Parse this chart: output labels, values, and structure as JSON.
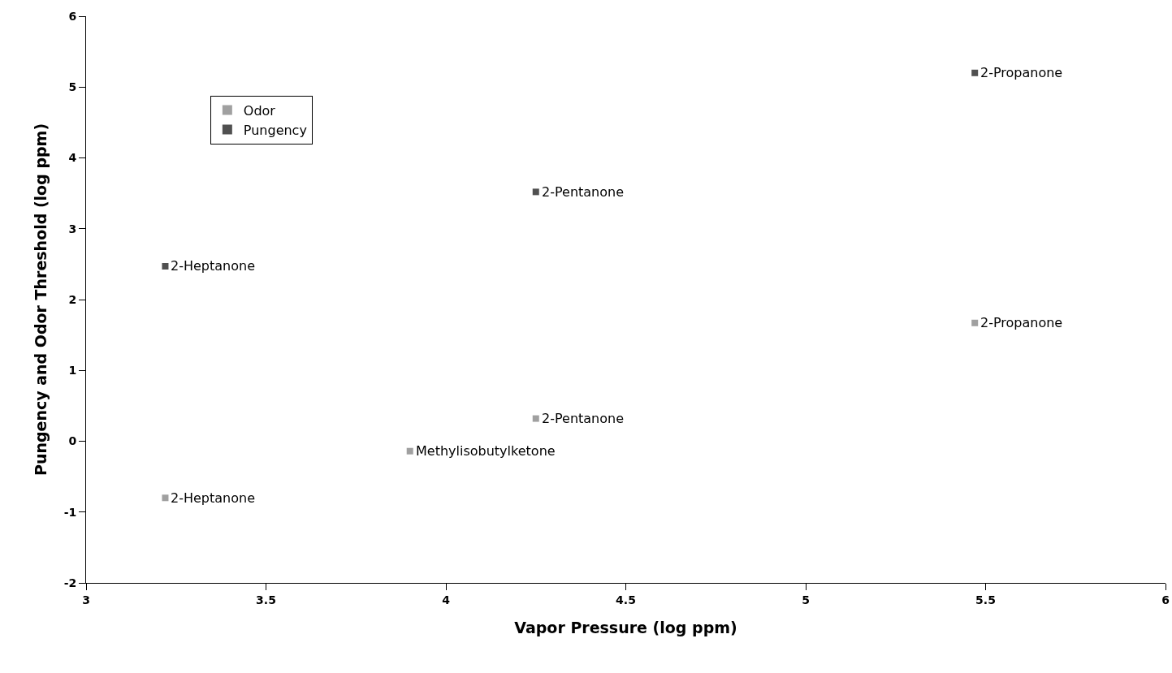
{
  "chart_data": {
    "type": "scatter",
    "xlabel": "Vapor Pressure (log ppm)",
    "ylabel": "Pungency and Odor Threshold (log ppm)",
    "series": [
      {
        "name": "Odor",
        "color": "#a0a0a0",
        "x": [
          5.47,
          4.25,
          3.22,
          3.9
        ],
        "values": [
          1.67,
          0.32,
          -0.8,
          -0.14
        ]
      },
      {
        "name": "Pungency",
        "color": "#505050",
        "x": [
          5.47,
          4.25,
          3.22
        ],
        "values": [
          5.2,
          3.52,
          2.47
        ]
      }
    ],
    "annotations": [
      {
        "text": "2-Propanone",
        "x": 5.47,
        "y": 5.2
      },
      {
        "text": "2-Pentanone",
        "x": 4.25,
        "y": 3.52
      },
      {
        "text": "2-Heptanone",
        "x": 3.22,
        "y": 2.47
      },
      {
        "text": "2-Propanone",
        "x": 5.47,
        "y": 1.67
      },
      {
        "text": "2-Pentanone",
        "x": 4.25,
        "y": 0.32
      },
      {
        "text": "Methylisobutylketone",
        "x": 3.9,
        "y": -0.14
      },
      {
        "text": "2-Heptanone",
        "x": 3.22,
        "y": -0.8
      }
    ],
    "xlim": [
      3,
      6
    ],
    "xticks": [
      3,
      3.5,
      4,
      4.5,
      5,
      5.5,
      6
    ],
    "ylim": [
      -2,
      6
    ],
    "yticks": [
      -2,
      -1,
      0,
      1,
      2,
      3,
      4,
      5,
      6
    ],
    "grid": false,
    "legend": "top left",
    "marker": "square"
  }
}
